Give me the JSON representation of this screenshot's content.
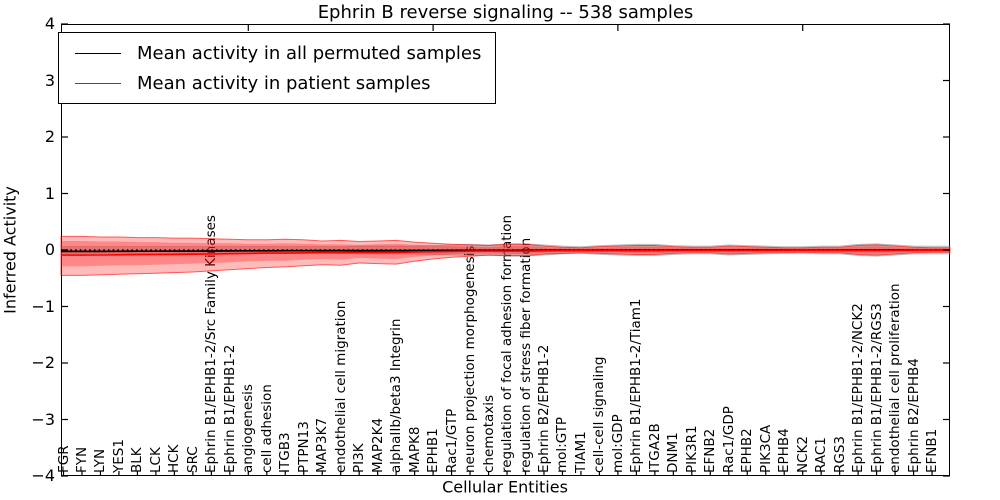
{
  "figure": {
    "title": "Ephrin B reverse signaling -- 538 samples",
    "xlabel": "Cellular Entities",
    "ylabel": "Inferred Activity"
  },
  "legend": {
    "items": [
      {
        "label": "Mean activity in all permuted samples",
        "color": "#000000"
      },
      {
        "label": "Mean activity in patient samples",
        "color": "#ff0000"
      }
    ]
  },
  "axes": {
    "y_tick_labels": [
      "4",
      "3",
      "2",
      "1",
      "0",
      "−1",
      "−2",
      "−3",
      "−4"
    ],
    "y_tick_values": [
      4,
      3,
      2,
      1,
      0,
      -1,
      -2,
      -3,
      -4
    ],
    "ylim": [
      -4,
      4
    ]
  },
  "colors": {
    "permuted_line": "#000000",
    "patient_line": "#ff0000",
    "patient_band": "#ff0000",
    "permuted_band": "#808080",
    "zero_line": "#000000"
  },
  "chart_data": {
    "type": "line",
    "title": "Ephrin B reverse signaling -- 538 samples",
    "xlabel": "Cellular Entities",
    "ylabel": "Inferred Activity",
    "ylim": [
      -4,
      4
    ],
    "grid": false,
    "legend_position": "upper left",
    "categories": [
      "FGR",
      "FYN",
      "LYN",
      "YES1",
      "BLK",
      "LCK",
      "HCK",
      "SRC",
      "Ephrin B1/EPHB1-2/Src Family Kinases",
      "Ephrin B1/EPHB1-2",
      "angiogenesis",
      "cell adhesion",
      "ITGB3",
      "PTPN13",
      "MAP3K7",
      "endothelial cell migration",
      "PI3K",
      "MAP2K4",
      "alphaIIb/beta3 Integrin",
      "MAPK8",
      "EPHB1",
      "Rac1/GTP",
      "neuron projection morphogenesis",
      "chemotaxis",
      "regulation of focal adhesion formation",
      "regulation of stress fiber formation",
      "Ephrin B2/EPHB1-2",
      "mol:GTP",
      "TIAM1",
      "cell-cell signaling",
      "mol:GDP",
      "Ephrin B1/EPHB1-2/Tiam1",
      "ITGA2B",
      "DNM1",
      "PIK3R1",
      "EFNB2",
      "Rac1/GDP",
      "EPHB2",
      "PIK3CA",
      "EPHB4",
      "NCK2",
      "RAC1",
      "RGS3",
      "Ephrin B1/EPHB1-2/NCK2",
      "Ephrin B1/EPHB1-2/RGS3",
      "endothelial cell proliferation",
      "Ephrin B2/EPHB4",
      "EFNB1"
    ],
    "series": [
      {
        "name": "Mean activity in all permuted samples",
        "color": "#000000",
        "values": [
          -0.025,
          -0.025,
          -0.024,
          -0.023,
          -0.022,
          -0.021,
          -0.02,
          -0.019,
          -0.018,
          -0.016,
          -0.015,
          -0.014,
          -0.013,
          -0.012,
          -0.011,
          -0.011,
          -0.01,
          -0.01,
          -0.01,
          -0.009,
          -0.008,
          -0.007,
          -0.006,
          -0.005,
          -0.005,
          -0.005,
          -0.004,
          -0.004,
          -0.003,
          -0.003,
          -0.003,
          -0.003,
          -0.003,
          -0.002,
          -0.002,
          -0.002,
          -0.002,
          -0.002,
          -0.002,
          -0.002,
          -0.001,
          -0.001,
          -0.001,
          -0.002,
          -0.002,
          -0.001,
          -0.001,
          -0.001
        ]
      },
      {
        "name": "Mean activity in patient samples",
        "color": "#ff0000",
        "values": [
          -0.09,
          -0.09,
          -0.088,
          -0.085,
          -0.082,
          -0.08,
          -0.078,
          -0.075,
          -0.07,
          -0.065,
          -0.06,
          -0.055,
          -0.055,
          -0.05,
          -0.045,
          -0.047,
          -0.04,
          -0.042,
          -0.045,
          -0.035,
          -0.03,
          -0.025,
          -0.02,
          -0.018,
          -0.02,
          -0.02,
          -0.015,
          -0.012,
          -0.01,
          -0.012,
          -0.012,
          -0.014,
          -0.013,
          -0.01,
          -0.008,
          -0.008,
          -0.01,
          -0.009,
          -0.008,
          -0.007,
          -0.006,
          -0.007,
          -0.007,
          -0.01,
          -0.01,
          -0.008,
          -0.006,
          -0.005
        ]
      }
    ],
    "bands": [
      {
        "name": "permuted-samples-spread",
        "color": "#808080",
        "opacity": 0.35,
        "top": [
          0.06,
          0.06,
          0.06,
          0.06,
          0.06,
          0.06,
          0.06,
          0.06,
          0.06,
          0.06,
          0.06,
          0.06,
          0.06,
          0.06,
          0.06,
          0.06,
          0.07,
          0.07,
          0.07,
          0.07,
          0.08,
          0.09,
          0.1,
          0.09,
          0.11,
          0.11,
          0.09,
          0.07,
          0.06,
          0.08,
          0.09,
          0.1,
          0.1,
          0.08,
          0.07,
          0.07,
          0.09,
          0.08,
          0.07,
          0.06,
          0.06,
          0.07,
          0.07,
          0.1,
          0.11,
          0.09,
          0.07,
          0.07
        ],
        "bottom": [
          -0.06,
          -0.06,
          -0.06,
          -0.06,
          -0.06,
          -0.06,
          -0.06,
          -0.06,
          -0.06,
          -0.06,
          -0.06,
          -0.06,
          -0.06,
          -0.06,
          -0.06,
          -0.06,
          -0.07,
          -0.07,
          -0.07,
          -0.07,
          -0.08,
          -0.09,
          -0.1,
          -0.09,
          -0.11,
          -0.11,
          -0.09,
          -0.07,
          -0.06,
          -0.08,
          -0.09,
          -0.1,
          -0.1,
          -0.08,
          -0.07,
          -0.07,
          -0.09,
          -0.08,
          -0.07,
          -0.06,
          -0.06,
          -0.07,
          -0.07,
          -0.1,
          -0.11,
          -0.09,
          -0.07,
          -0.07
        ]
      },
      {
        "name": "patient-samples-spread-outer",
        "color": "#ff0000",
        "opacity": 0.27,
        "top": [
          0.24,
          0.24,
          0.23,
          0.23,
          0.22,
          0.22,
          0.21,
          0.21,
          0.2,
          0.19,
          0.18,
          0.18,
          0.19,
          0.18,
          0.16,
          0.17,
          0.15,
          0.16,
          0.17,
          0.14,
          0.12,
          0.1,
          0.09,
          0.08,
          0.1,
          0.1,
          0.07,
          0.05,
          0.04,
          0.06,
          0.07,
          0.08,
          0.08,
          0.06,
          0.05,
          0.05,
          0.07,
          0.06,
          0.05,
          0.04,
          0.04,
          0.05,
          0.05,
          0.08,
          0.09,
          0.07,
          0.05,
          0.04
        ],
        "bottom": [
          -0.45,
          -0.45,
          -0.44,
          -0.43,
          -0.42,
          -0.41,
          -0.4,
          -0.39,
          -0.37,
          -0.35,
          -0.33,
          -0.31,
          -0.3,
          -0.28,
          -0.26,
          -0.27,
          -0.23,
          -0.24,
          -0.25,
          -0.2,
          -0.16,
          -0.13,
          -0.11,
          -0.09,
          -0.1,
          -0.1,
          -0.07,
          -0.06,
          -0.05,
          -0.06,
          -0.07,
          -0.08,
          -0.08,
          -0.06,
          -0.05,
          -0.05,
          -0.07,
          -0.06,
          -0.05,
          -0.05,
          -0.04,
          -0.05,
          -0.05,
          -0.08,
          -0.09,
          -0.07,
          -0.05,
          -0.04
        ]
      },
      {
        "name": "patient-samples-spread-inner",
        "color": "#ff0000",
        "opacity": 0.27,
        "top": [
          0.16,
          0.16,
          0.15,
          0.15,
          0.14,
          0.14,
          0.13,
          0.13,
          0.12,
          0.12,
          0.11,
          0.11,
          0.12,
          0.11,
          0.1,
          0.1,
          0.09,
          0.1,
          0.11,
          0.09,
          0.08,
          0.07,
          0.06,
          0.05,
          0.07,
          0.07,
          0.05,
          0.035,
          0.03,
          0.04,
          0.05,
          0.06,
          0.06,
          0.045,
          0.035,
          0.035,
          0.05,
          0.045,
          0.035,
          0.03,
          0.03,
          0.035,
          0.035,
          0.06,
          0.065,
          0.05,
          0.035,
          0.03
        ],
        "bottom": [
          -0.29,
          -0.29,
          -0.28,
          -0.27,
          -0.27,
          -0.26,
          -0.25,
          -0.24,
          -0.23,
          -0.22,
          -0.2,
          -0.19,
          -0.19,
          -0.17,
          -0.16,
          -0.17,
          -0.14,
          -0.15,
          -0.16,
          -0.12,
          -0.1,
          -0.08,
          -0.07,
          -0.06,
          -0.07,
          -0.07,
          -0.05,
          -0.04,
          -0.035,
          -0.045,
          -0.05,
          -0.06,
          -0.06,
          -0.045,
          -0.035,
          -0.035,
          -0.05,
          -0.045,
          -0.035,
          -0.035,
          -0.03,
          -0.035,
          -0.035,
          -0.06,
          -0.065,
          -0.05,
          -0.035,
          -0.03
        ]
      }
    ],
    "zero_line": 0
  }
}
